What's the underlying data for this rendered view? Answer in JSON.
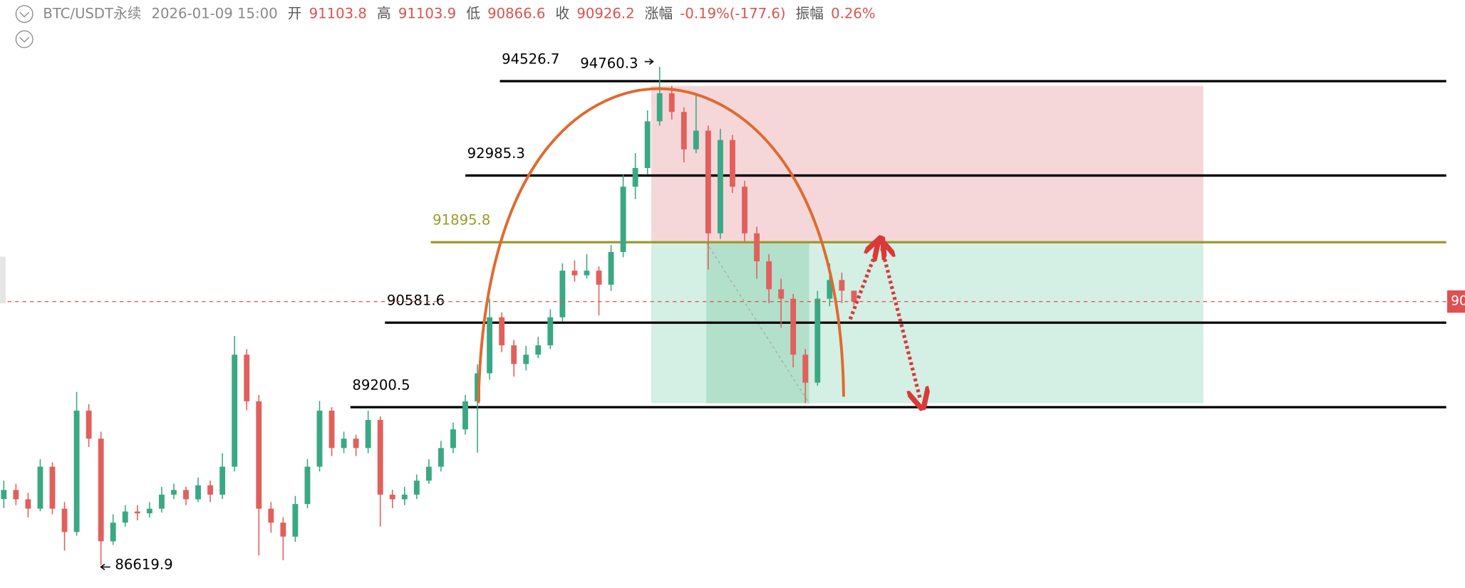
{
  "header": {
    "symbol": "BTC/USDT永续",
    "time": "2026-01-09 15:00",
    "open_label": "开",
    "high_label": "高",
    "low_label": "低",
    "close_label": "收",
    "change_label": "涨幅",
    "change": "-0.19%(-177.6)",
    "amplitude_label": "振幅",
    "amplitude": "0.26%"
  },
  "chart_data": {
    "type": "candlestick",
    "ylim": [
      86246,
      95853
    ],
    "up_color": "#3aa884",
    "down_color": "#e0605c",
    "open": [
      87700,
      87847,
      87695,
      87542,
      88228,
      87542,
      87161,
      89144,
      88686,
      87009,
      87314,
      87496,
      87466,
      87542,
      87771,
      87847,
      87695,
      87924,
      87771,
      88228,
      90058,
      89296,
      87542,
      87314,
      87085,
      87618,
      88228,
      89144,
      88533,
      88686,
      88533,
      88991,
      87771,
      87695,
      87771,
      88000,
      88228,
      88533,
      88838,
      89296,
      89754,
      90669,
      90211,
      89906,
      90058,
      90211,
      90669,
      91431,
      91355,
      91431,
      91202,
      91736,
      92803,
      93108,
      93871,
      94329,
      94024,
      93413,
      93718,
      92041,
      93566,
      92803,
      92041,
      91583,
      91126,
      90973,
      90058,
      89601,
      90973,
      91278,
      91103.8
    ],
    "high": [
      88000,
      87950,
      87800,
      88350,
      88300,
      87650,
      89450,
      89250,
      88800,
      87450,
      87600,
      87600,
      87650,
      87900,
      87950,
      87900,
      88050,
      88000,
      88450,
      90363,
      90150,
      89400,
      87650,
      87400,
      87750,
      88350,
      89300,
      89200,
      88800,
      88750,
      89144,
      89050,
      87850,
      87900,
      88100,
      88350,
      88650,
      88950,
      89400,
      89900,
      90973,
      90750,
      90300,
      90200,
      90350,
      90800,
      91550,
      91600,
      91700,
      91500,
      91850,
      93000,
      93350,
      94050,
      94760.3,
      94450,
      94100,
      94300,
      93800,
      93750,
      93650,
      92900,
      92150,
      91700,
      91300,
      91050,
      90150,
      91100,
      91550,
      91400,
      91103.9
    ],
    "low": [
      87550,
      87600,
      87400,
      87500,
      87450,
      86856,
      87100,
      88550,
      86620,
      86950,
      87250,
      87350,
      87400,
      87480,
      87700,
      87600,
      87650,
      87650,
      87700,
      88150,
      89150,
      86780,
      87150,
      86700,
      87000,
      87550,
      88150,
      88400,
      88450,
      88400,
      88450,
      87250,
      87550,
      87600,
      87700,
      87950,
      88150,
      88450,
      88750,
      88457,
      89650,
      90100,
      89700,
      89800,
      90000,
      90150,
      90600,
      91250,
      91300,
      90700,
      91100,
      91650,
      92600,
      93000,
      93800,
      93900,
      93200,
      93350,
      91450,
      91950,
      92700,
      91900,
      91300,
      90900,
      90500,
      89850,
      89265,
      89550,
      90850,
      90900,
      90866.6
    ],
    "close": [
      87847,
      87695,
      87542,
      88228,
      87542,
      87161,
      89144,
      88686,
      87009,
      87314,
      87496,
      87466,
      87542,
      87771,
      87847,
      87695,
      87924,
      87771,
      88228,
      90058,
      89296,
      87542,
      87314,
      87085,
      87618,
      88228,
      89144,
      88533,
      88686,
      88533,
      88991,
      87771,
      87695,
      87771,
      88000,
      88228,
      88533,
      88838,
      89296,
      89754,
      90669,
      90211,
      89906,
      90058,
      90211,
      90669,
      91431,
      91355,
      91431,
      91202,
      91736,
      92803,
      93108,
      93871,
      94329,
      94024,
      93413,
      93718,
      92041,
      93566,
      92803,
      92041,
      91583,
      91126,
      90973,
      90058,
      89601,
      90973,
      91278,
      91103.8,
      90926.2
    ],
    "levels": [
      {
        "value": 94526.7,
        "color": "#000000"
      },
      {
        "value": 92985.3,
        "color": "#000000"
      },
      {
        "value": 91895.8,
        "color": "#9a9a2e"
      },
      {
        "value": 90581.6,
        "color": "#000000"
      },
      {
        "value": 89200.5,
        "color": "#000000"
      }
    ],
    "zones": [
      {
        "top": 94450,
        "bottom": 91895.8,
        "color": "#f3c9cc"
      },
      {
        "top": 91895.8,
        "bottom": 89265,
        "color": "#c6eadb"
      }
    ],
    "annotations": [
      94760.3,
      86619.9
    ]
  }
}
